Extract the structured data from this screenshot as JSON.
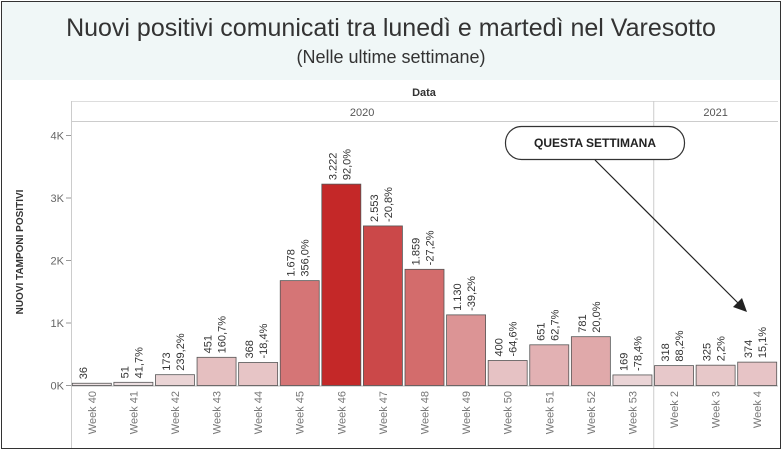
{
  "title": "Nuovi positivi comunicati tra lunedì e martedì nel Varesotto",
  "subtitle": "(Nelle ultime settimane)",
  "chart_data": {
    "type": "bar",
    "column_header": "Data",
    "year_groups": [
      {
        "label": "2020",
        "count": 14
      },
      {
        "label": "2021",
        "count": 3
      }
    ],
    "categories": [
      "Week 40",
      "Week 41",
      "Week 42",
      "Week 43",
      "Week 44",
      "Week 45",
      "Week 46",
      "Week 47",
      "Week 48",
      "Week 49",
      "Week 50",
      "Week 51",
      "Week 52",
      "Week 53",
      "Week 2",
      "Week 3",
      "Week 4"
    ],
    "values": [
      36,
      51,
      173,
      451,
      368,
      1678,
      3222,
      2553,
      1859,
      1130,
      400,
      651,
      781,
      169,
      318,
      325,
      374
    ],
    "value_labels": [
      "36",
      "51",
      "173",
      "451",
      "368",
      "1.678",
      "3.222",
      "2.553",
      "1.859",
      "1.130",
      "400",
      "651",
      "781",
      "169",
      "318",
      "325",
      "374"
    ],
    "pct_labels": [
      "",
      "41,7%",
      "239,2%",
      "160,7%",
      "-18,4%",
      "356,0%",
      "92,0%",
      "-20,8%",
      "-27,2%",
      "-39,2%",
      "-64,6%",
      "62,7%",
      "20,0%",
      "-78,4%",
      "88,2%",
      "2,2%",
      "15,1%"
    ],
    "ylabel": "NUOVI TAMPONI POSITIVI",
    "yticks": [
      0,
      1000,
      2000,
      3000,
      4000
    ],
    "ytick_labels": [
      "0K",
      "1K",
      "2K",
      "3K",
      "4K"
    ],
    "ylim": [
      0,
      4350
    ],
    "annotation": "QUESTA SETTIMANA",
    "color_min": "#eee6e8",
    "color_max": "#c42828",
    "grid": false
  }
}
